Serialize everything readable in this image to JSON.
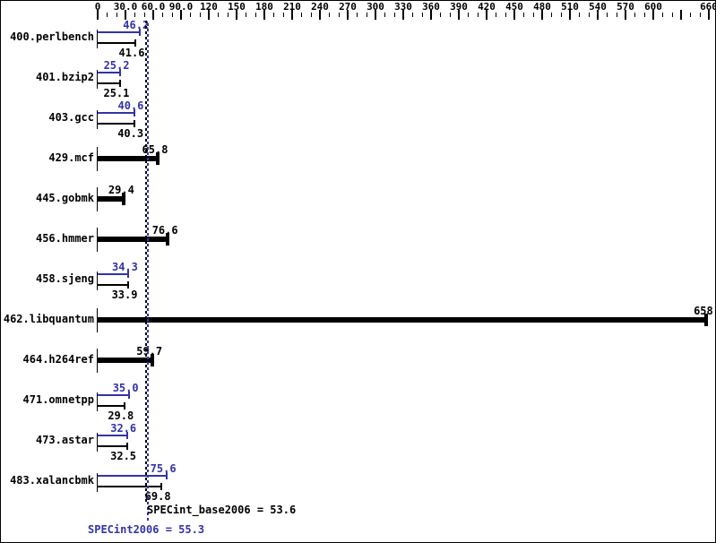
{
  "chart_data": {
    "type": "bar",
    "orientation": "horizontal",
    "title": "",
    "xlabel": "",
    "ylabel": "",
    "xlim": [
      0,
      660
    ],
    "x_major_step": 30,
    "x_minor_step": 10,
    "x_tick_values": [
      0,
      30,
      60,
      90,
      120,
      150,
      180,
      210,
      240,
      270,
      300,
      330,
      360,
      390,
      420,
      450,
      480,
      510,
      540,
      570,
      600,
      660
    ],
    "x_tick_labels": [
      "0",
      "30.0",
      "60.0",
      "90.0",
      "120",
      "150",
      "180",
      "210",
      "240",
      "270",
      "300",
      "330",
      "360",
      "390",
      "420",
      "450",
      "480",
      "510",
      "540",
      "570",
      "600",
      "660"
    ],
    "series_note": "blue thin bar = peak (SPECint2006), black bar = base (SPECint_base2006); thick black bar = single result",
    "benchmarks": [
      {
        "name": "400.perlbench",
        "peak": "46.2",
        "base": "41.6"
      },
      {
        "name": "401.bzip2",
        "peak": "25.2",
        "base": "25.1"
      },
      {
        "name": "403.gcc",
        "peak": "40.6",
        "base": "40.3"
      },
      {
        "name": "429.mcf",
        "peak": null,
        "base": "65.8"
      },
      {
        "name": "445.gobmk",
        "peak": null,
        "base": "29.4"
      },
      {
        "name": "456.hmmer",
        "peak": null,
        "base": "76.6"
      },
      {
        "name": "458.sjeng",
        "peak": "34.3",
        "base": "33.9"
      },
      {
        "name": "462.libquantum",
        "peak": null,
        "base": "658"
      },
      {
        "name": "464.h264ref",
        "peak": null,
        "base": "59.7"
      },
      {
        "name": "471.omnetpp",
        "peak": "35.0",
        "base": "29.8"
      },
      {
        "name": "473.astar",
        "peak": "32.6",
        "base": "32.5"
      },
      {
        "name": "483.xalancbmk",
        "peak": "75.6",
        "base": "69.8"
      }
    ],
    "summary": {
      "base_text": "SPECint_base2006 = 53.6",
      "base_value": 53.6,
      "peak_text": "SPECint2006 = 55.3",
      "peak_value": 55.3
    },
    "colors": {
      "peak_blue": "#3333aa",
      "base_black": "#000000",
      "background": "#ffffff"
    }
  }
}
